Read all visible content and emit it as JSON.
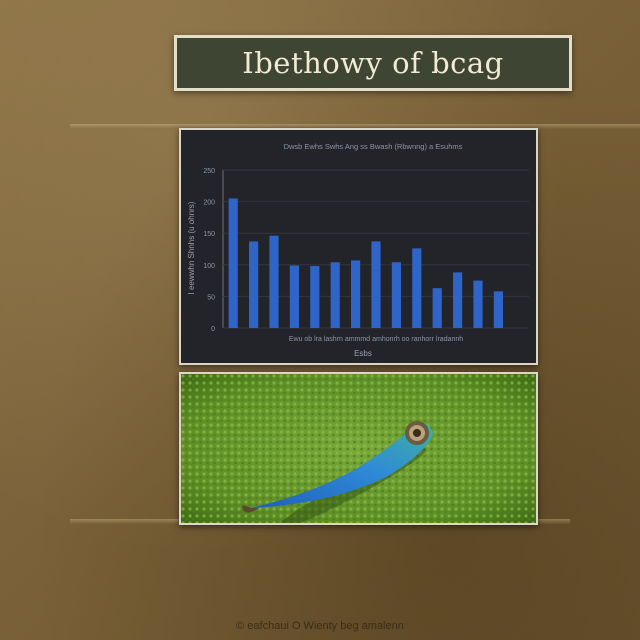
{
  "page": {
    "title": "Ibethowy of bcag",
    "caption": "© eafchaui O Wienty beg amalenn"
  },
  "colors": {
    "bar": "#2f64c8",
    "chart_background": "#222429",
    "title_box": "#3e4532"
  },
  "chart_data": {
    "type": "bar",
    "title": "Dwsb Ewhs Swhs Ang ss Bwash (Rbwnng) a Esuhms",
    "xlabel": "Esbs",
    "ylabel": "I eewwhn Shnhs (u ohnrs)",
    "yticks": [
      "0",
      "50",
      "100",
      "150",
      "200",
      "250"
    ],
    "ylim": [
      0,
      250
    ],
    "x_tick_text": "Ewu ob lra lashrn ammmd amhonrh oo ranhorr lradannh",
    "categories": [
      "",
      "",
      "",
      "",
      "",
      "",
      "",
      "",
      "",
      "",
      "",
      "",
      "",
      "",
      ""
    ],
    "values": [
      205,
      137,
      146,
      99,
      98,
      104,
      107,
      137,
      104,
      126,
      63,
      88,
      75,
      58,
      0
    ],
    "grid": true,
    "legend": "none"
  },
  "illustration": {
    "subject": "blue fish on green moss"
  }
}
